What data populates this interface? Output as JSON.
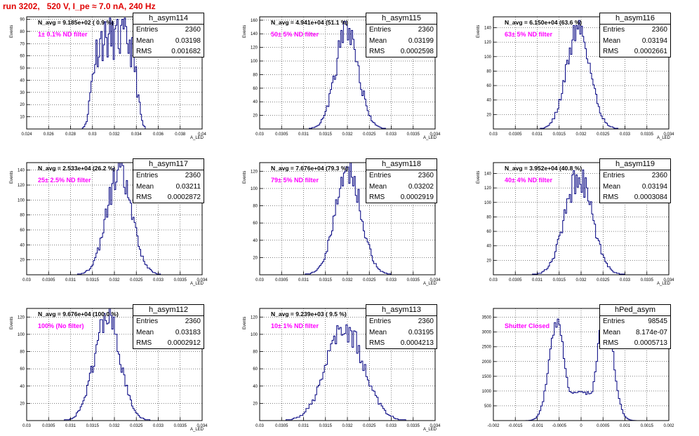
{
  "header": {
    "run_title": "run 3202,   520 V, I_pe ≈ 7.0 nA, 240 Hz"
  },
  "chart_data": [
    {
      "type": "step-histogram",
      "name": "h_asym114",
      "stats": {
        "entries": "2360",
        "mean": "0.03198",
        "rms": "0.001682"
      },
      "navg_label": "N_avg = 9.185e+02 ( 0.9 %)",
      "filter_label": "1± 0.1% ND filter",
      "ylabel": "Events",
      "xlabel": "A_LED",
      "xlim": [
        0.024,
        0.04
      ],
      "ylim": [
        0,
        92
      ],
      "xticks": [
        0.024,
        0.026,
        0.028,
        0.03,
        0.032,
        0.034,
        0.036,
        0.038,
        0.04
      ],
      "xtick_labels": [
        "0.024",
        "0.026",
        "0.028",
        "0.03",
        "0.032",
        "0.034",
        "0.036",
        "0.038",
        "0.04"
      ],
      "yticks": [
        10,
        20,
        30,
        40,
        50,
        60,
        70,
        80,
        90
      ],
      "gauss": {
        "shape": "flat",
        "mu": 0.03198,
        "sigma": 0.001682,
        "peak": 80,
        "xmin": 0.0275,
        "xmax": 0.0365,
        "nbins": 80,
        "seed": 11
      }
    },
    {
      "type": "step-histogram",
      "name": "h_asym115",
      "stats": {
        "entries": "2360",
        "mean": "0.03199",
        "rms": "0.0002598"
      },
      "navg_label": "N_avg = 4.941e+04 (51.1 %)",
      "filter_label": "50± 5% ND filter",
      "ylabel": "Events",
      "xlabel": "A_LED",
      "xlim": [
        0.03,
        0.034
      ],
      "ylim": [
        0,
        165
      ],
      "xticks": [
        0.03,
        0.0305,
        0.031,
        0.0315,
        0.032,
        0.0325,
        0.033,
        0.0335,
        0.034
      ],
      "xtick_labels": [
        "0.03",
        "0.0305",
        "0.031",
        "0.0315",
        "0.032",
        "0.0325",
        "0.033",
        "0.0335",
        "0.034"
      ],
      "yticks": [
        20,
        40,
        60,
        80,
        100,
        120,
        140,
        160
      ],
      "gauss": {
        "shape": "gauss",
        "mu": 0.03199,
        "sigma": 0.0002598,
        "peak": 150,
        "xmin": 0.0308,
        "xmax": 0.0332,
        "nbins": 80,
        "seed": 21
      }
    },
    {
      "type": "step-histogram",
      "name": "h_asym116",
      "stats": {
        "entries": "2360",
        "mean": "0.03194",
        "rms": "0.0002661"
      },
      "navg_label": "N_avg = 6.150e+04 (63.6 %)",
      "filter_label": "63± 5% ND filter",
      "ylabel": "Events",
      "xlabel": "A_LED",
      "xlim": [
        0.03,
        0.034
      ],
      "ylim": [
        0,
        155
      ],
      "xticks": [
        0.03,
        0.0305,
        0.031,
        0.0315,
        0.032,
        0.0325,
        0.033,
        0.0335,
        0.034
      ],
      "xtick_labels": [
        "0.03",
        "0.0305",
        "0.031",
        "0.0315",
        "0.032",
        "0.0325",
        "0.033",
        "0.0335",
        "0.034"
      ],
      "yticks": [
        20,
        40,
        60,
        80,
        100,
        120,
        140
      ],
      "gauss": {
        "shape": "gauss",
        "mu": 0.03194,
        "sigma": 0.0002661,
        "peak": 145,
        "xmin": 0.0308,
        "xmax": 0.0332,
        "nbins": 80,
        "seed": 31
      }
    },
    {
      "type": "step-histogram",
      "name": "h_asym117",
      "stats": {
        "entries": "2360",
        "mean": "0.03211",
        "rms": "0.0002872"
      },
      "navg_label": "N_avg = 2.533e+04 (26.2 %)",
      "filter_label": "25± 2.5% ND filter",
      "ylabel": "Events",
      "xlabel": "A_LED",
      "xlim": [
        0.03,
        0.034
      ],
      "ylim": [
        0,
        150
      ],
      "xticks": [
        0.03,
        0.0305,
        0.031,
        0.0315,
        0.032,
        0.0325,
        0.033,
        0.0335,
        0.034
      ],
      "xtick_labels": [
        "0.03",
        "0.0305",
        "0.031",
        "0.0315",
        "0.032",
        "0.0325",
        "0.033",
        "0.0335",
        "0.034"
      ],
      "yticks": [
        20,
        40,
        60,
        80,
        100,
        120,
        140
      ],
      "gauss": {
        "shape": "gauss",
        "mu": 0.03211,
        "sigma": 0.0002872,
        "peak": 140,
        "xmin": 0.0308,
        "xmax": 0.0332,
        "nbins": 80,
        "seed": 41
      }
    },
    {
      "type": "step-histogram",
      "name": "h_asym118",
      "stats": {
        "entries": "2360",
        "mean": "0.03202",
        "rms": "0.0002919"
      },
      "navg_label": "N_avg = 7.676e+04 (79.3 %)",
      "filter_label": "79± 5% ND filter",
      "ylabel": "Events",
      "xlabel": "A_LED",
      "xlim": [
        0.03,
        0.034
      ],
      "ylim": [
        0,
        130
      ],
      "xticks": [
        0.03,
        0.0305,
        0.031,
        0.0315,
        0.032,
        0.0325,
        0.033,
        0.0335,
        0.034
      ],
      "xtick_labels": [
        "0.03",
        "0.0305",
        "0.031",
        "0.0315",
        "0.032",
        "0.0325",
        "0.033",
        "0.0335",
        "0.034"
      ],
      "yticks": [
        20,
        40,
        60,
        80,
        100,
        120
      ],
      "gauss": {
        "shape": "gauss",
        "mu": 0.03202,
        "sigma": 0.0002919,
        "peak": 125,
        "xmin": 0.0308,
        "xmax": 0.0332,
        "nbins": 80,
        "seed": 51
      }
    },
    {
      "type": "step-histogram",
      "name": "h_asym119",
      "stats": {
        "entries": "2360",
        "mean": "0.03194",
        "rms": "0.0003084"
      },
      "navg_label": "N_avg = 3.952e+04 (40.8 %)",
      "filter_label": "40± 4% ND filter",
      "ylabel": "Events",
      "xlabel": "A_LED",
      "xlim": [
        0.03,
        0.034
      ],
      "ylim": [
        0,
        155
      ],
      "xticks": [
        0.03,
        0.0305,
        0.031,
        0.0315,
        0.032,
        0.0325,
        0.033,
        0.0335,
        0.034
      ],
      "xtick_labels": [
        "0.03",
        "0.0305",
        "0.031",
        "0.0315",
        "0.032",
        "0.0325",
        "0.033",
        "0.0335",
        "0.034"
      ],
      "yticks": [
        20,
        40,
        60,
        80,
        100,
        120,
        140
      ],
      "gauss": {
        "shape": "gauss",
        "mu": 0.03194,
        "sigma": 0.0003084,
        "peak": 140,
        "xmin": 0.0308,
        "xmax": 0.0332,
        "nbins": 80,
        "seed": 61
      }
    },
    {
      "type": "step-histogram",
      "name": "h_asym112",
      "stats": {
        "entries": "2360",
        "mean": "0.03183",
        "rms": "0.0002912"
      },
      "navg_label": "N_avg = 9.676e+04 (100.0 %)",
      "filter_label": "100% (No filter)",
      "ylabel": "Events",
      "xlabel": "A_LED",
      "xlim": [
        0.03,
        0.034
      ],
      "ylim": [
        0,
        130
      ],
      "xticks": [
        0.03,
        0.0305,
        0.031,
        0.0315,
        0.032,
        0.0325,
        0.033,
        0.0335,
        0.034
      ],
      "xtick_labels": [
        "0.03",
        "0.0305",
        "0.031",
        "0.0315",
        "0.032",
        "0.0325",
        "0.033",
        "0.0335",
        "0.034"
      ],
      "yticks": [
        20,
        40,
        60,
        80,
        100,
        120
      ],
      "gauss": {
        "shape": "gauss",
        "mu": 0.03183,
        "sigma": 0.0002912,
        "peak": 125,
        "xmin": 0.0308,
        "xmax": 0.0332,
        "nbins": 80,
        "seed": 71
      }
    },
    {
      "type": "step-histogram",
      "name": "h_asym113",
      "stats": {
        "entries": "2360",
        "mean": "0.03195",
        "rms": "0.0004213"
      },
      "navg_label": "N_avg = 9.239e+03 ( 9.5 %)",
      "filter_label": "10± 1% ND filter",
      "ylabel": "Events",
      "xlabel": "A_LED",
      "xlim": [
        0.03,
        0.034
      ],
      "ylim": [
        0,
        130
      ],
      "xticks": [
        0.03,
        0.0305,
        0.031,
        0.0315,
        0.032,
        0.0325,
        0.033,
        0.0335,
        0.034
      ],
      "xtick_labels": [
        "0.03",
        "0.0305",
        "0.031",
        "0.0315",
        "0.032",
        "0.0325",
        "0.033",
        "0.0335",
        "0.034"
      ],
      "yticks": [
        20,
        40,
        60,
        80,
        100,
        120
      ],
      "gauss": {
        "shape": "gauss",
        "mu": 0.03195,
        "sigma": 0.0004213,
        "peak": 112,
        "xmin": 0.0306,
        "xmax": 0.0334,
        "nbins": 80,
        "seed": 81
      }
    },
    {
      "type": "step-histogram",
      "name": "hPed_asym",
      "stats": {
        "entries": "98545",
        "mean": "8.174e-07",
        "rms": "0.0005713"
      },
      "navg_label": "",
      "filter_label": "Shutter Closed",
      "ylabel": "",
      "xlabel": "",
      "xlim": [
        -0.002,
        0.002
      ],
      "ylim": [
        0,
        3800
      ],
      "xticks": [
        -0.002,
        -0.0015,
        -0.001,
        -0.0005,
        0,
        0.0005,
        0.001,
        0.0015,
        0.002
      ],
      "xtick_labels": [
        "-0.002",
        "-0.0015",
        "-0.001",
        "-0.0005",
        "0",
        "0.0005",
        "0.001",
        "0.0015",
        "0.002"
      ],
      "yticks": [
        500,
        1000,
        1500,
        2000,
        2500,
        3000,
        3500
      ],
      "gauss": {
        "shape": "double",
        "mu": 0.00055,
        "sigma": 0.00018,
        "peak": 3650,
        "peak2": 3250,
        "valley": 950,
        "xmin": -0.0017,
        "xmax": 0.0017,
        "nbins": 100,
        "seed": 91
      }
    }
  ]
}
